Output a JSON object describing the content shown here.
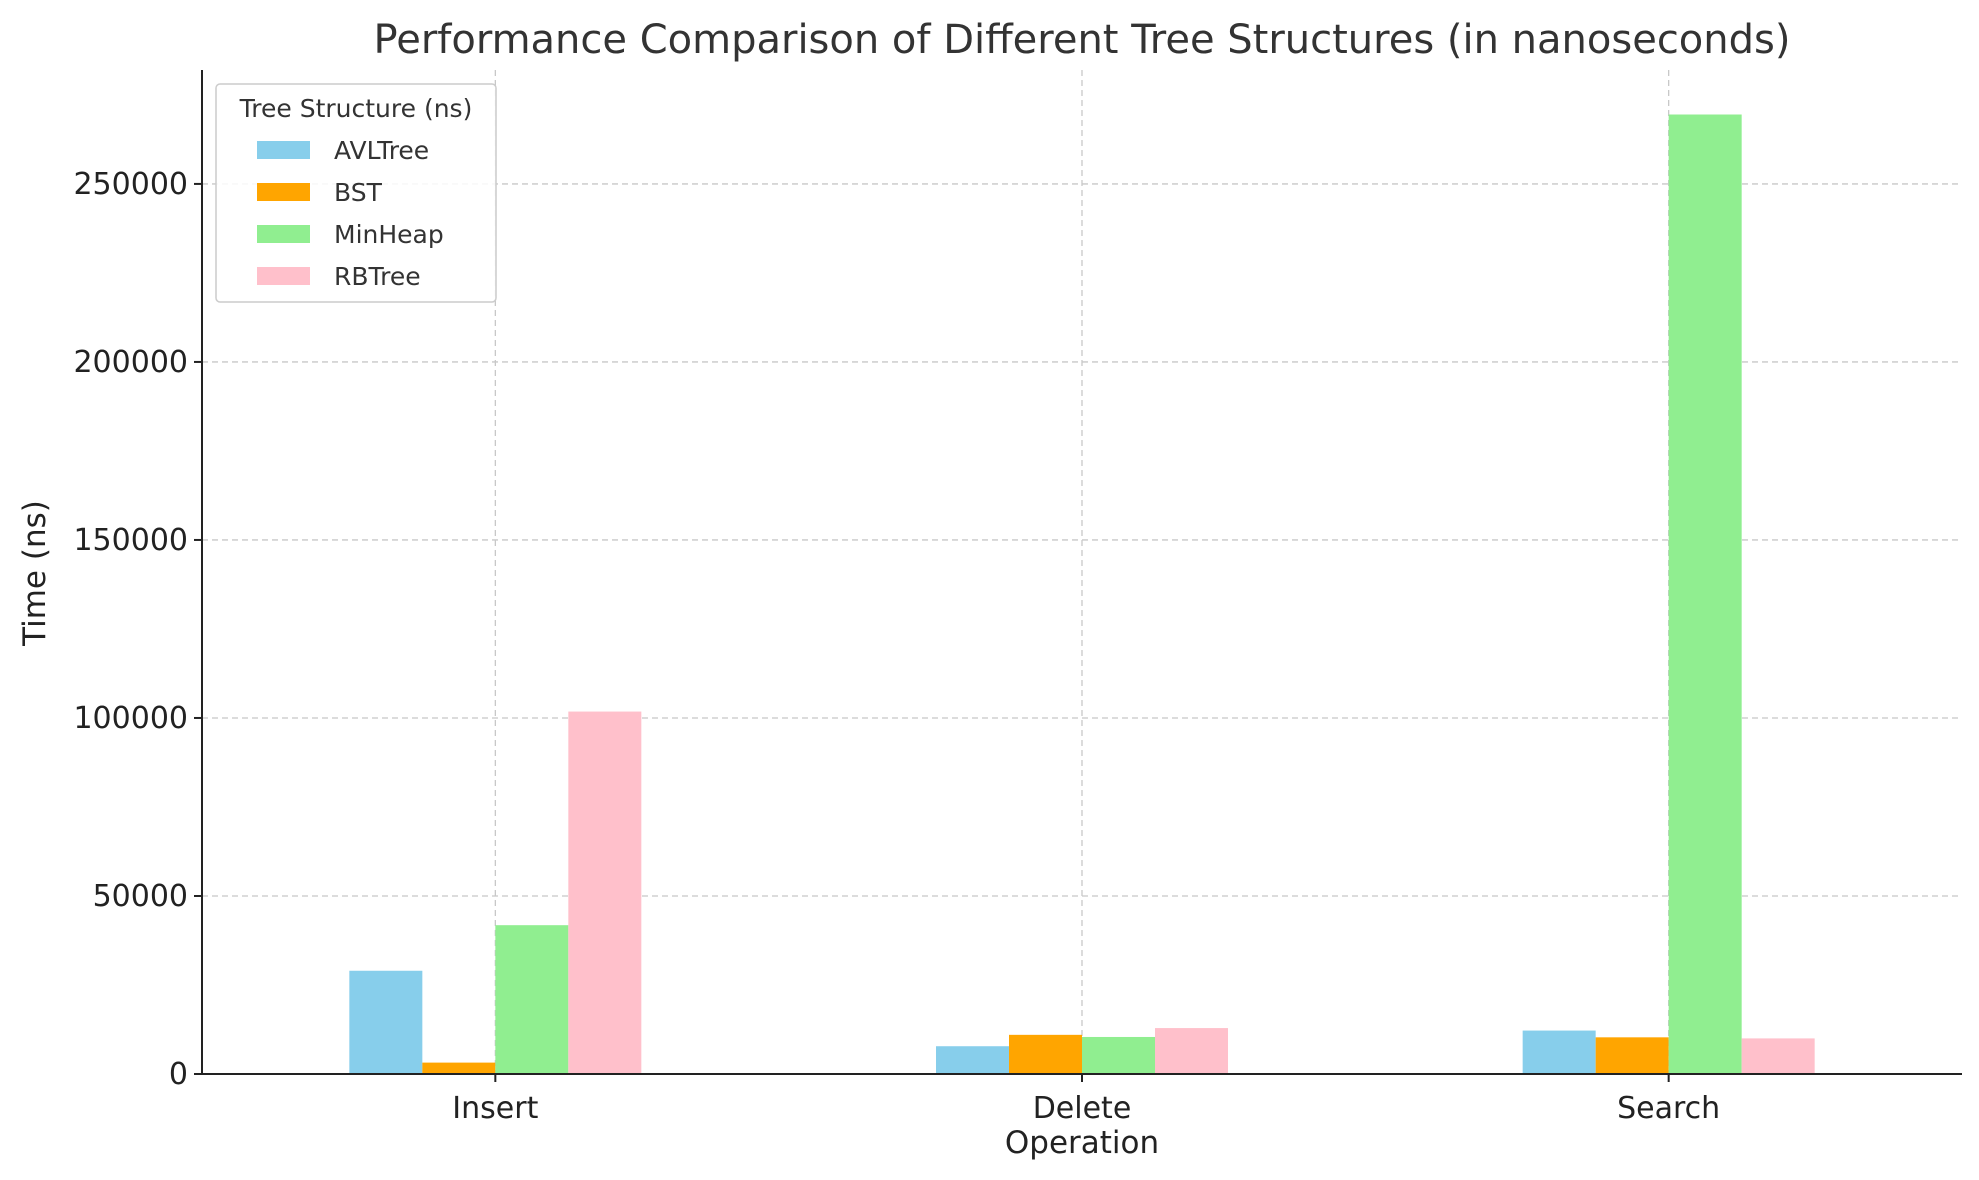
{
  "chart_data": {
    "type": "bar",
    "title": "Performance Comparison of Different Tree Structures (in nanoseconds)",
    "xlabel": "Operation",
    "ylabel": "Time (ns)",
    "categories": [
      "Insert",
      "Delete",
      "Search"
    ],
    "ylim": [
      0,
      282000
    ],
    "yticks": [
      0,
      50000,
      100000,
      150000,
      200000,
      250000
    ],
    "ytick_labels": [
      "0",
      "50000",
      "100000",
      "150000",
      "200000",
      "250000"
    ],
    "grid": true,
    "legend": {
      "title": "Tree Structure (ns)",
      "placement": "top-left"
    },
    "series": [
      {
        "name": "AVLTree",
        "color": "#87ceeb",
        "values": [
          29000,
          7800,
          12200
        ]
      },
      {
        "name": "BST",
        "color": "#ffa500",
        "values": [
          3200,
          11000,
          10300
        ]
      },
      {
        "name": "MinHeap",
        "color": "#90ee90",
        "values": [
          41800,
          10400,
          269500
        ]
      },
      {
        "name": "RBTree",
        "color": "#ffc0cb",
        "values": [
          101800,
          12900,
          10000
        ]
      }
    ]
  }
}
